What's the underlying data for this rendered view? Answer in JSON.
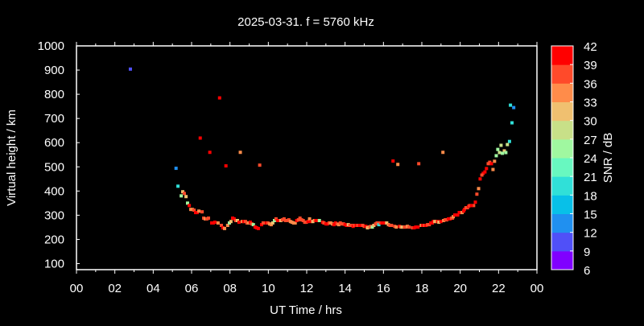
{
  "chart_data": {
    "type": "scatter",
    "title": "2025-03-31. f = 5760 kHz",
    "xlabel": "UT Time / hrs",
    "ylabel": "Virtual height / km",
    "xlim": [
      0,
      24
    ],
    "ylim": [
      75,
      1000
    ],
    "xticks": [
      "00",
      "02",
      "04",
      "06",
      "08",
      "10",
      "12",
      "14",
      "16",
      "18",
      "20",
      "22",
      "00"
    ],
    "yticks": [
      100,
      200,
      300,
      400,
      500,
      600,
      700,
      800,
      900,
      1000
    ],
    "grid": false,
    "legend": "none",
    "colorbar": {
      "label": "SNR / dB",
      "ticks": [
        6,
        9,
        12,
        15,
        18,
        21,
        24,
        27,
        30,
        33,
        36,
        39,
        42
      ],
      "colors": [
        "#8000ff",
        "#5050f8",
        "#2090f0",
        "#08c0e8",
        "#30e0d8",
        "#68f8c0",
        "#a0f8a0",
        "#c8e088",
        "#f0c070",
        "#ff8c4a",
        "#ff4a2a",
        "#ff0000"
      ]
    },
    "point_fields": [
      "hour",
      "height_km",
      "snr_db"
    ],
    "points": [
      [
        2.81,
        904,
        10
      ],
      [
        5.19,
        494,
        13
      ],
      [
        7.46,
        785,
        40
      ],
      [
        6.45,
        619,
        40
      ],
      [
        6.95,
        560,
        40
      ],
      [
        8.54,
        560,
        34
      ],
      [
        7.79,
        504,
        41
      ],
      [
        9.55,
        507,
        37
      ],
      [
        16.5,
        524,
        40
      ],
      [
        16.75,
        510,
        34
      ],
      [
        17.84,
        513,
        37
      ],
      [
        19.1,
        560,
        34
      ],
      [
        22.62,
        755,
        20
      ],
      [
        22.79,
        745,
        13
      ],
      [
        22.7,
        682,
        20
      ],
      [
        22.57,
        605,
        20
      ],
      [
        22.13,
        589,
        28
      ],
      [
        22.46,
        592,
        28
      ],
      [
        21.96,
        572,
        25
      ],
      [
        22.05,
        559,
        28
      ],
      [
        22.3,
        566,
        31
      ],
      [
        22.2,
        556,
        25
      ],
      [
        22.38,
        559,
        25
      ],
      [
        21.88,
        546,
        25
      ],
      [
        21.79,
        523,
        34
      ],
      [
        21.54,
        519,
        37
      ],
      [
        21.46,
        513,
        37
      ],
      [
        21.63,
        513,
        40
      ],
      [
        21.71,
        489,
        34
      ],
      [
        21.37,
        493,
        40
      ],
      [
        21.29,
        479,
        40
      ],
      [
        21.2,
        473,
        40
      ],
      [
        21.13,
        466,
        37
      ],
      [
        21.04,
        450,
        40
      ],
      [
        20.96,
        410,
        34
      ],
      [
        20.87,
        387,
        37
      ],
      [
        20.79,
        354,
        40
      ],
      [
        20.7,
        340,
        37
      ],
      [
        5.29,
        420,
        20
      ],
      [
        5.54,
        397,
        31
      ],
      [
        5.62,
        390,
        37
      ],
      [
        5.46,
        380,
        25
      ],
      [
        5.71,
        377,
        31
      ],
      [
        5.79,
        350,
        25
      ],
      [
        5.88,
        340,
        40
      ],
      [
        5.96,
        324,
        34
      ],
      [
        6.04,
        324,
        34
      ],
      [
        6.13,
        321,
        37
      ],
      [
        6.21,
        311,
        40
      ],
      [
        6.29,
        311,
        40
      ],
      [
        6.38,
        317,
        34
      ],
      [
        6.55,
        314,
        37
      ],
      [
        6.63,
        288,
        37
      ],
      [
        6.71,
        285,
        34
      ],
      [
        6.8,
        285,
        37
      ],
      [
        6.88,
        288,
        37
      ],
      [
        7.05,
        268,
        40
      ],
      [
        7.13,
        268,
        40
      ],
      [
        7.21,
        271,
        40
      ],
      [
        7.38,
        268,
        34
      ],
      [
        7.55,
        258,
        37
      ],
      [
        7.63,
        248,
        40
      ],
      [
        7.72,
        245,
        34
      ],
      [
        7.88,
        258,
        34
      ],
      [
        7.97,
        268,
        25
      ],
      [
        8.05,
        274,
        31
      ],
      [
        8.14,
        288,
        40
      ],
      [
        8.22,
        285,
        40
      ],
      [
        8.3,
        278,
        37
      ],
      [
        8.39,
        278,
        31
      ],
      [
        8.47,
        271,
        40
      ],
      [
        8.64,
        274,
        34
      ],
      [
        8.72,
        274,
        40
      ],
      [
        8.81,
        274,
        37
      ],
      [
        8.89,
        268,
        37
      ],
      [
        8.97,
        268,
        34
      ],
      [
        9.06,
        271,
        40
      ],
      [
        9.14,
        264,
        37
      ],
      [
        9.22,
        261,
        25
      ],
      [
        9.31,
        251,
        40
      ],
      [
        9.39,
        248,
        40
      ],
      [
        9.48,
        245,
        40
      ],
      [
        9.65,
        261,
        40
      ],
      [
        9.73,
        268,
        37
      ],
      [
        9.81,
        268,
        37
      ],
      [
        9.9,
        268,
        40
      ],
      [
        9.98,
        268,
        37
      ],
      [
        10.07,
        264,
        34
      ],
      [
        10.15,
        261,
        34
      ],
      [
        10.23,
        268,
        31
      ],
      [
        10.32,
        278,
        25
      ],
      [
        10.4,
        285,
        37
      ],
      [
        10.48,
        278,
        40
      ],
      [
        10.57,
        278,
        40
      ],
      [
        10.65,
        278,
        31
      ],
      [
        10.73,
        281,
        37
      ],
      [
        10.82,
        285,
        37
      ],
      [
        10.9,
        278,
        37
      ],
      [
        10.98,
        278,
        37
      ],
      [
        11.07,
        281,
        37
      ],
      [
        11.15,
        274,
        34
      ],
      [
        11.23,
        271,
        34
      ],
      [
        11.32,
        268,
        34
      ],
      [
        11.4,
        268,
        34
      ],
      [
        11.48,
        278,
        40
      ],
      [
        11.57,
        281,
        37
      ],
      [
        11.65,
        288,
        37
      ],
      [
        11.73,
        281,
        37
      ],
      [
        11.82,
        278,
        37
      ],
      [
        11.9,
        271,
        37
      ],
      [
        11.98,
        271,
        37
      ],
      [
        12.07,
        274,
        40
      ],
      [
        12.15,
        285,
        34
      ],
      [
        12.23,
        274,
        40
      ],
      [
        12.32,
        274,
        31
      ],
      [
        12.4,
        278,
        34
      ],
      [
        12.48,
        278,
        40
      ],
      [
        12.57,
        278,
        40
      ],
      [
        12.66,
        278,
        25
      ],
      [
        12.83,
        271,
        40
      ],
      [
        12.9,
        268,
        37
      ],
      [
        13.0,
        264,
        40
      ],
      [
        13.08,
        264,
        40
      ],
      [
        13.17,
        268,
        37
      ],
      [
        13.25,
        268,
        34
      ],
      [
        13.34,
        264,
        34
      ],
      [
        13.42,
        261,
        40
      ],
      [
        13.5,
        268,
        40
      ],
      [
        13.59,
        264,
        37
      ],
      [
        13.67,
        261,
        34
      ],
      [
        13.75,
        268,
        37
      ],
      [
        13.84,
        264,
        37
      ],
      [
        13.92,
        264,
        37
      ],
      [
        14.0,
        261,
        40
      ],
      [
        14.08,
        258,
        40
      ],
      [
        14.17,
        261,
        31
      ],
      [
        14.25,
        258,
        37
      ],
      [
        14.33,
        258,
        37
      ],
      [
        14.42,
        254,
        40
      ],
      [
        14.5,
        258,
        37
      ],
      [
        14.58,
        258,
        40
      ],
      [
        14.67,
        258,
        37
      ],
      [
        14.75,
        258,
        40
      ],
      [
        14.84,
        258,
        40
      ],
      [
        14.92,
        258,
        37
      ],
      [
        15.0,
        254,
        37
      ],
      [
        15.08,
        254,
        40
      ],
      [
        15.17,
        248,
        31
      ],
      [
        15.25,
        251,
        34
      ],
      [
        15.34,
        254,
        37
      ],
      [
        15.42,
        251,
        25
      ],
      [
        15.5,
        258,
        31
      ],
      [
        15.59,
        264,
        37
      ],
      [
        15.67,
        268,
        37
      ],
      [
        15.76,
        261,
        20
      ],
      [
        15.84,
        268,
        37
      ],
      [
        15.92,
        268,
        40
      ],
      [
        16.0,
        268,
        40
      ],
      [
        16.09,
        268,
        40
      ],
      [
        16.17,
        268,
        31
      ],
      [
        16.26,
        261,
        34
      ],
      [
        16.34,
        258,
        37
      ],
      [
        16.42,
        258,
        37
      ],
      [
        16.59,
        254,
        37
      ],
      [
        16.67,
        251,
        34
      ],
      [
        16.84,
        254,
        40
      ],
      [
        16.92,
        251,
        34
      ],
      [
        17.0,
        251,
        31
      ],
      [
        17.09,
        251,
        37
      ],
      [
        17.17,
        251,
        37
      ],
      [
        17.25,
        254,
        34
      ],
      [
        17.34,
        251,
        37
      ],
      [
        17.52,
        248,
        37
      ],
      [
        17.6,
        248,
        40
      ],
      [
        17.68,
        251,
        40
      ],
      [
        17.8,
        251,
        40
      ],
      [
        17.97,
        258,
        34
      ],
      [
        18.05,
        258,
        40
      ],
      [
        18.14,
        258,
        37
      ],
      [
        18.22,
        258,
        40
      ],
      [
        18.3,
        261,
        37
      ],
      [
        18.39,
        261,
        37
      ],
      [
        18.47,
        268,
        40
      ],
      [
        18.55,
        268,
        40
      ],
      [
        18.6,
        274,
        40
      ],
      [
        18.68,
        274,
        31
      ],
      [
        18.76,
        274,
        34
      ],
      [
        18.84,
        274,
        40
      ],
      [
        18.89,
        271,
        31
      ],
      [
        19.0,
        274,
        40
      ],
      [
        19.14,
        278,
        34
      ],
      [
        19.22,
        281,
        37
      ],
      [
        19.3,
        281,
        37
      ],
      [
        19.39,
        285,
        40
      ],
      [
        19.47,
        285,
        40
      ],
      [
        19.55,
        288,
        37
      ],
      [
        19.6,
        288,
        37
      ],
      [
        19.64,
        294,
        34
      ],
      [
        19.72,
        301,
        40
      ],
      [
        19.87,
        301,
        40
      ],
      [
        19.95,
        311,
        40
      ],
      [
        20.03,
        311,
        40
      ],
      [
        20.1,
        311,
        34
      ],
      [
        20.18,
        317,
        40
      ],
      [
        20.22,
        324,
        40
      ],
      [
        20.3,
        331,
        37
      ],
      [
        20.38,
        331,
        37
      ],
      [
        20.44,
        337,
        40
      ],
      [
        20.5,
        340,
        37
      ],
      [
        20.58,
        340,
        40
      ]
    ]
  }
}
